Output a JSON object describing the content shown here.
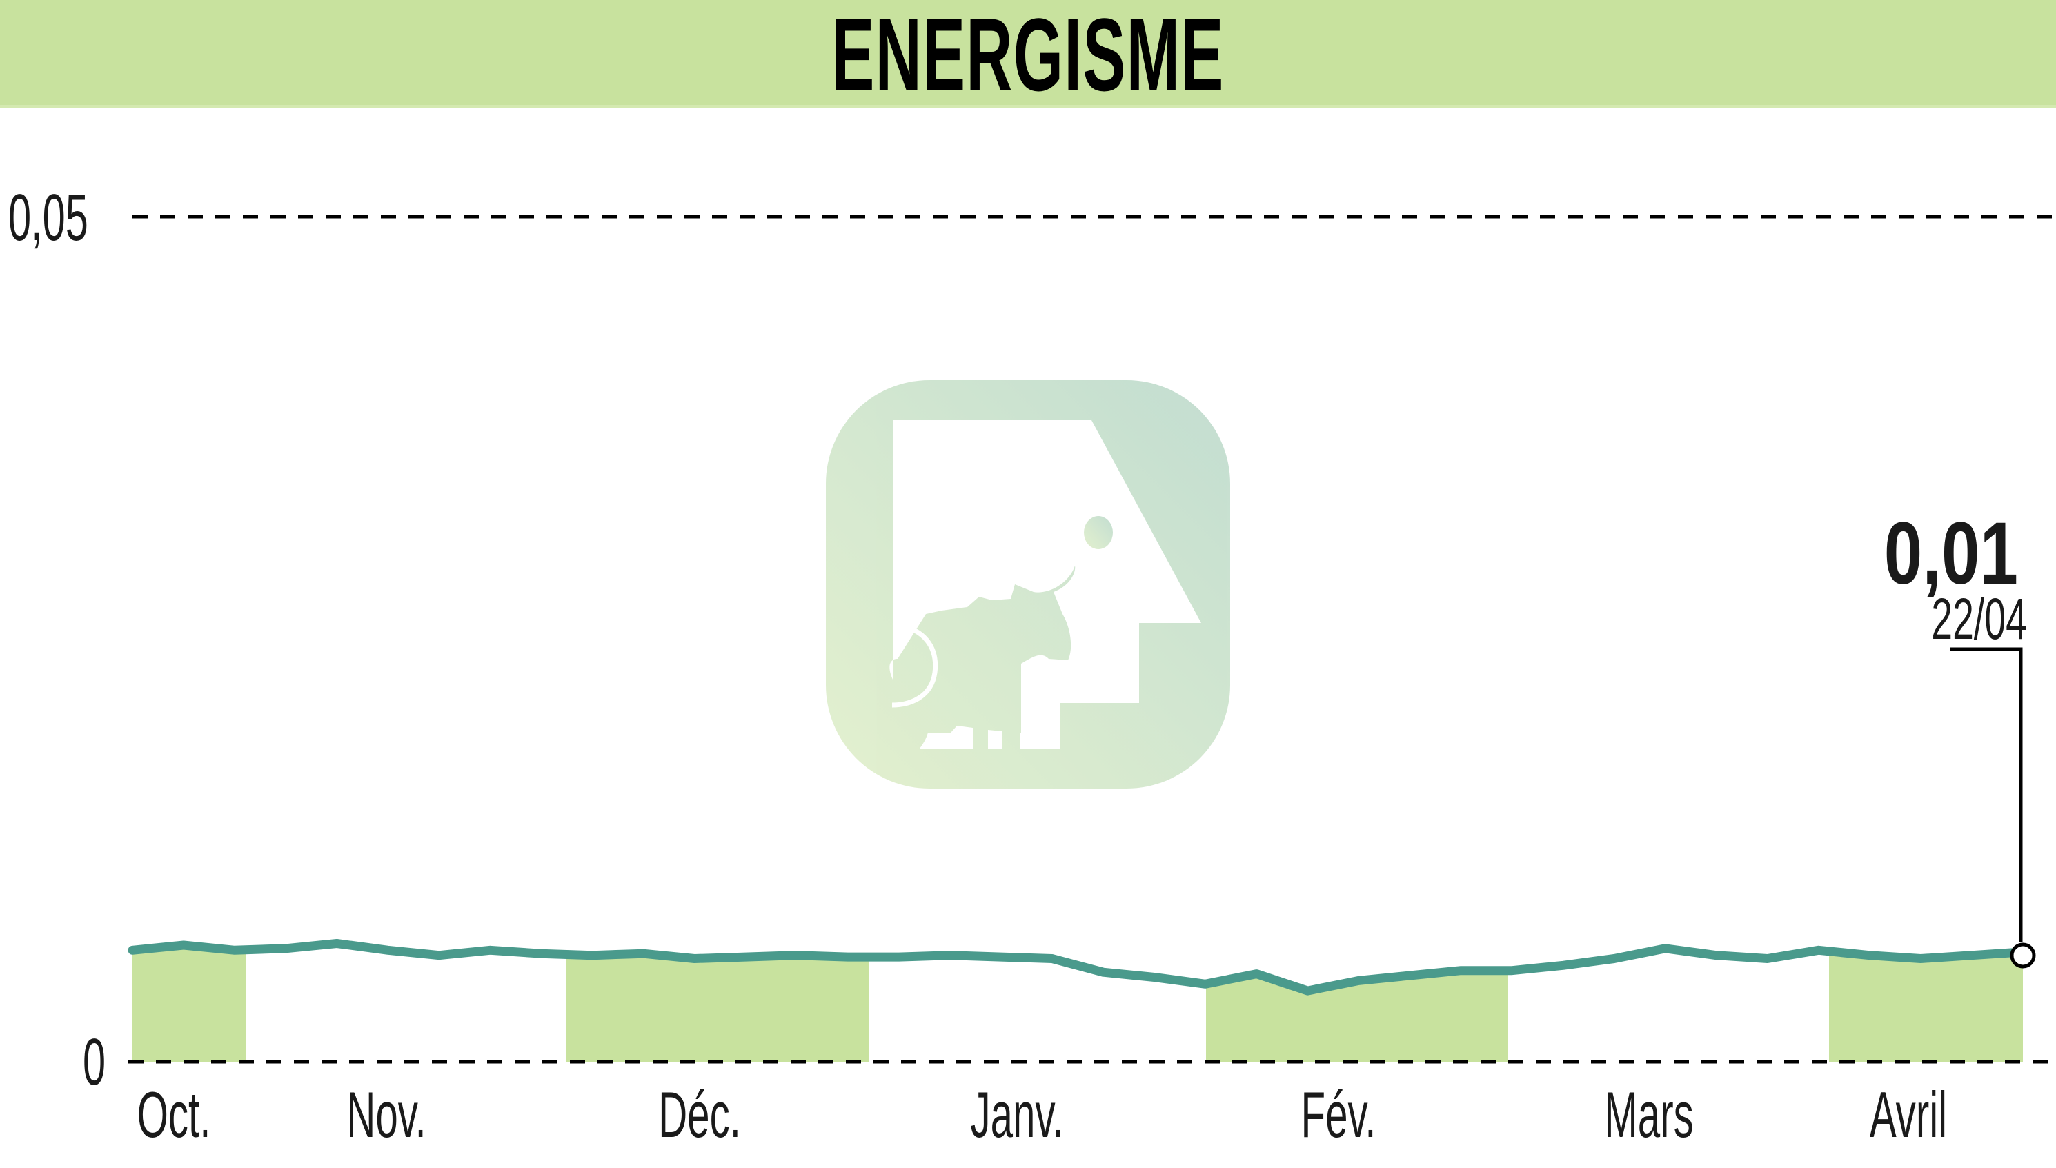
{
  "header": {
    "title": "ENERGISME"
  },
  "colors": {
    "header_bg": "#c8e29e",
    "band_fill": "#c8e29e",
    "line": "#4a9a8c",
    "grid": "#000000",
    "watermark_from": "#e0efcc",
    "watermark_to": "#c2ddd0"
  },
  "y_axis": {
    "top_label": "0,05",
    "bottom_label": "0"
  },
  "x_axis": {
    "labels": [
      "Oct.",
      "Nov.",
      "Déc.",
      "Janv.",
      "Fév.",
      "Mars",
      "Avril"
    ]
  },
  "last_point": {
    "value": "0,01",
    "date": "22/04"
  },
  "chart_data": {
    "type": "area",
    "title": "ENERGISME",
    "xlabel": "",
    "ylabel": "",
    "ylim": [
      0,
      0.05
    ],
    "yticks": [
      "0",
      "0,05"
    ],
    "grid": "horizontal dashed at 0 and 0.05",
    "legend": "none",
    "categories": [
      "Oct.",
      "Nov.",
      "Déc.",
      "Janv.",
      "Fév.",
      "Mars",
      "Avril"
    ],
    "shaded_months": [
      "Oct.",
      "Déc.",
      "Fév.",
      "Avril"
    ],
    "annotation": {
      "value": "0,01",
      "date": "22/04"
    },
    "series": [
      {
        "name": "ENERGISME",
        "x": [
          "Oct",
          "Oct",
          "Oct",
          "Oct",
          "Oct",
          "Nov",
          "Nov",
          "Nov",
          "Nov",
          "Nov",
          "Nov",
          "Déc",
          "Déc",
          "Déc",
          "Déc",
          "Déc",
          "Déc",
          "Janv",
          "Janv",
          "Janv",
          "Janv",
          "Janv",
          "Janv",
          "Fév",
          "Fév",
          "Fév",
          "Fév",
          "Fév",
          "Mars",
          "Mars",
          "Mars",
          "Mars",
          "Mars",
          "Mars",
          "Avril",
          "Avril",
          "Avril",
          "Avril"
        ],
        "values": [
          0.0066,
          0.0069,
          0.0066,
          0.0067,
          0.007,
          0.0066,
          0.0063,
          0.0066,
          0.0064,
          0.0063,
          0.0064,
          0.0061,
          0.0062,
          0.0063,
          0.0062,
          0.0062,
          0.0063,
          0.0062,
          0.0061,
          0.0053,
          0.005,
          0.0046,
          0.0052,
          0.0042,
          0.0048,
          0.0051,
          0.0054,
          0.0054,
          0.0057,
          0.0061,
          0.0067,
          0.0063,
          0.0061,
          0.0066,
          0.0063,
          0.0061,
          0.0063,
          0.0065
        ]
      }
    ]
  }
}
